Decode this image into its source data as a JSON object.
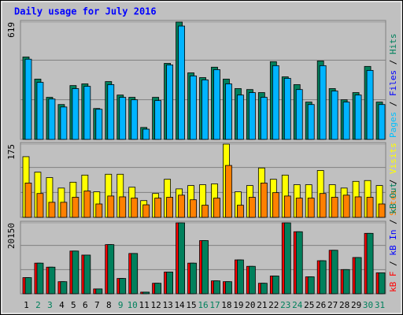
{
  "chart_data": {
    "type": "bar",
    "title": "Daily usage for July 2016",
    "categories": [
      "1",
      "2",
      "3",
      "4",
      "5",
      "6",
      "7",
      "8",
      "9",
      "10",
      "11",
      "12",
      "13",
      "14",
      "15",
      "16",
      "17",
      "18",
      "19",
      "20",
      "21",
      "22",
      "23",
      "24",
      "25",
      "26",
      "27",
      "28",
      "29",
      "30",
      "31"
    ],
    "category_color": "#000000",
    "weekend_color": "#00805c",
    "weekend_indices": [
      1,
      2,
      8,
      9,
      15,
      16,
      22,
      23,
      29,
      30
    ],
    "panels": [
      {
        "ylim": [
          0,
          619
        ],
        "yticks": [
          619
        ],
        "grid": true,
        "legend": [
          {
            "name": "Pages",
            "color": "#00c0ff"
          },
          {
            "name": "Files",
            "color": "#0000ff"
          },
          {
            "name": "Hits",
            "color": "#00805c"
          }
        ],
        "series": [
          {
            "color": "#00805c",
            "values": [
              435,
              318,
              222,
              184,
              284,
              293,
              163,
              305,
              234,
              222,
              63,
              222,
              401,
              619,
              351,
              326,
              381,
              318,
              268,
              263,
              247,
              410,
              330,
              289,
              197,
              414,
              268,
              209,
              247,
              385,
              197
            ]
          },
          {
            "color": "#00b4ff",
            "values": [
              423,
              301,
              213,
              171,
              268,
              280,
              159,
              289,
              222,
              209,
              54,
              205,
              393,
              598,
              335,
              314,
              368,
              293,
              234,
              247,
              222,
              389,
              322,
              263,
              184,
              389,
              255,
              197,
              234,
              364,
              184
            ]
          }
        ]
      },
      {
        "ylim": [
          0,
          175
        ],
        "yticks": [
          175
        ],
        "grid": true,
        "legend": [
          {
            "name": "Sites",
            "color": "#ff8000"
          },
          {
            "name": "Visits",
            "color": "#ffff00"
          }
        ],
        "series": [
          {
            "color": "#ffff00",
            "values": [
              145,
              108,
              95,
              70,
              84,
              101,
              61,
              103,
              103,
              72,
              40,
              57,
              91,
              68,
              76,
              78,
              80,
              175,
              61,
              76,
              118,
              91,
              101,
              78,
              78,
              112,
              78,
              70,
              86,
              88,
              76
            ]
          },
          {
            "color": "#ff8000",
            "values": [
              82,
              57,
              36,
              36,
              48,
              63,
              32,
              51,
              49,
              46,
              30,
              46,
              48,
              53,
              42,
              29,
              46,
              124,
              29,
              48,
              82,
              59,
              51,
              46,
              46,
              57,
              48,
              53,
              49,
              48,
              32
            ]
          }
        ]
      },
      {
        "ylim": [
          0,
          20150
        ],
        "yticks": [
          20150
        ],
        "grid": true,
        "legend": [
          {
            "name": "kB F",
            "color": "#ff0000"
          },
          {
            "name": "kB In",
            "color": "#0000ff"
          },
          {
            "name": "kB Out",
            "color": "#00805c"
          }
        ],
        "series": [
          {
            "color": "#ff0000",
            "values": [
              4580,
              8700,
              7560,
              3430,
              12140,
              10990,
              1370,
              13970,
              4350,
              11450,
              460,
              2980,
              6180,
              20150,
              8700,
              15110,
              3660,
              3430,
              9620,
              7790,
              2980,
              5040,
              20150,
              17630,
              4810,
              9390,
              12360,
              6870,
              10300,
              17170,
              5950
            ]
          },
          {
            "color": "#00805c",
            "values": [
              4580,
              8700,
              7560,
              3430,
              12140,
              10990,
              1370,
              13970,
              4350,
              11450,
              460,
              2980,
              6180,
              20150,
              8700,
              15110,
              3660,
              3430,
              9620,
              7790,
              2980,
              5040,
              20150,
              17630,
              4810,
              9390,
              12360,
              6870,
              10300,
              17170,
              5950
            ]
          }
        ]
      }
    ]
  }
}
